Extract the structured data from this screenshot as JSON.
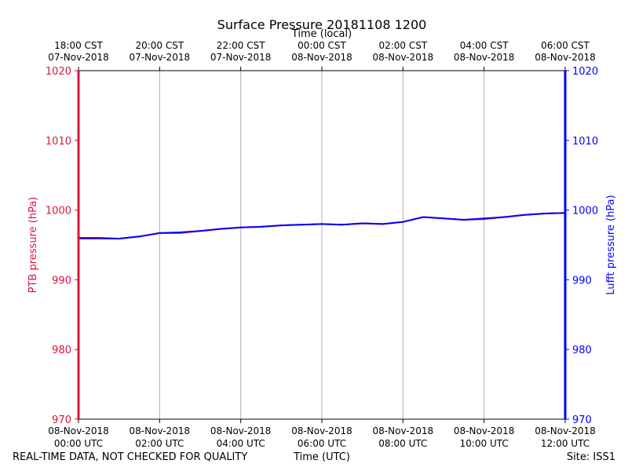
{
  "chart_data": {
    "type": "line",
    "title": "Surface Pressure 20181108 1200",
    "top_axis_label": "Time (local)",
    "xlabel": "Time (UTC)",
    "ylabel_left": "PTB pressure (hPa)",
    "ylabel_right": "Lufft pressure (hPa)",
    "ylim": [
      970,
      1020
    ],
    "yticks": [
      970,
      980,
      990,
      1000,
      1010,
      1020
    ],
    "xlim_hours": [
      0,
      12
    ],
    "x_ticks_bottom": [
      {
        "hour": 0,
        "date": "08-Nov-2018",
        "time": "00:00 UTC"
      },
      {
        "hour": 2,
        "date": "08-Nov-2018",
        "time": "02:00 UTC"
      },
      {
        "hour": 4,
        "date": "08-Nov-2018",
        "time": "04:00 UTC"
      },
      {
        "hour": 6,
        "date": "08-Nov-2018",
        "time": "06:00 UTC"
      },
      {
        "hour": 8,
        "date": "08-Nov-2018",
        "time": "08:00 UTC"
      },
      {
        "hour": 10,
        "date": "08-Nov-2018",
        "time": "10:00 UTC"
      },
      {
        "hour": 12,
        "date": "08-Nov-2018",
        "time": "12:00 UTC"
      }
    ],
    "x_ticks_top": [
      {
        "hour": 0,
        "time": "18:00 CST",
        "date": "07-Nov-2018"
      },
      {
        "hour": 2,
        "time": "20:00 CST",
        "date": "07-Nov-2018"
      },
      {
        "hour": 4,
        "time": "22:00 CST",
        "date": "07-Nov-2018"
      },
      {
        "hour": 6,
        "time": "00:00 CST",
        "date": "08-Nov-2018"
      },
      {
        "hour": 8,
        "time": "02:00 CST",
        "date": "08-Nov-2018"
      },
      {
        "hour": 10,
        "time": "04:00 CST",
        "date": "08-Nov-2018"
      },
      {
        "hour": 12,
        "time": "06:00 CST",
        "date": "08-Nov-2018"
      }
    ],
    "grid": true,
    "series": [
      {
        "name": "PTB pressure",
        "axis": "left",
        "color": "#dc143c",
        "x": [
          0,
          0.5,
          1,
          1.5,
          2,
          2.5,
          3,
          3.5,
          4,
          4.5,
          5,
          5.5,
          6,
          6.5,
          7,
          7.5,
          8,
          8.5,
          9,
          9.5,
          10,
          10.5,
          11,
          11.5,
          12
        ],
        "values": [
          995.9,
          995.9,
          995.9,
          996.2,
          996.7,
          996.7,
          997.0,
          997.3,
          997.5,
          997.6,
          997.8,
          997.9,
          998.0,
          997.9,
          998.1,
          998.0,
          998.3,
          999.0,
          998.8,
          998.6,
          998.7,
          999.0,
          999.3,
          999.5,
          999.6
        ]
      },
      {
        "name": "Lufft pressure",
        "axis": "right",
        "color": "#0000ff",
        "x": [
          0,
          0.5,
          1,
          1.5,
          2,
          2.5,
          3,
          3.5,
          4,
          4.5,
          5,
          5.5,
          6,
          6.5,
          7,
          7.5,
          8,
          8.5,
          9,
          9.5,
          10,
          10.5,
          11,
          11.5,
          12
        ],
        "values": [
          996.0,
          996.0,
          995.9,
          996.2,
          996.7,
          996.8,
          997.0,
          997.3,
          997.5,
          997.6,
          997.8,
          997.9,
          998.0,
          997.9,
          998.1,
          998.0,
          998.3,
          999.0,
          998.8,
          998.6,
          998.8,
          999.0,
          999.3,
          999.5,
          999.6
        ]
      }
    ]
  },
  "footer": {
    "left": "REAL-TIME DATA, NOT CHECKED FOR QUALITY",
    "center": "Time (UTC)",
    "right": "Site: ISS1"
  }
}
